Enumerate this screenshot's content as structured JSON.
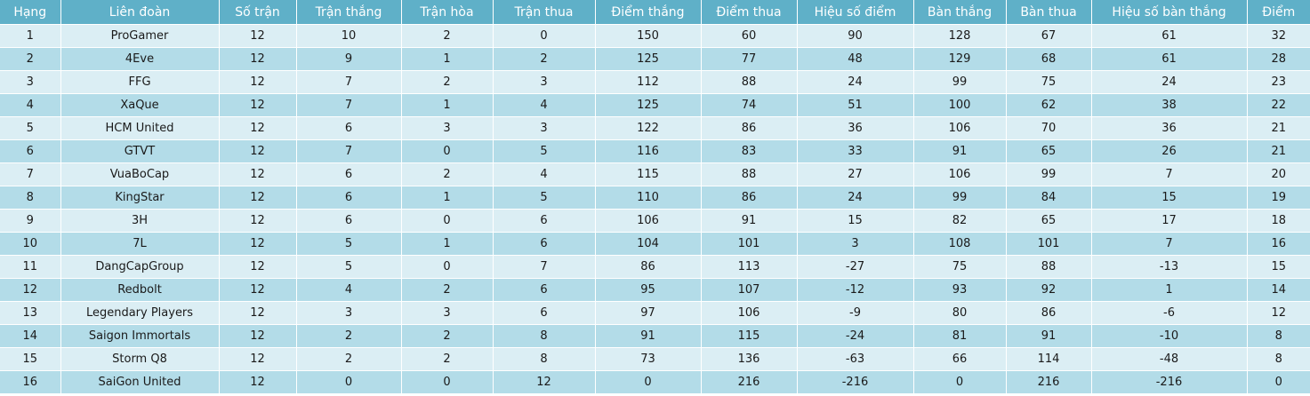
{
  "table": {
    "headers": [
      "Hạng",
      "Liên đoàn",
      "Số trận",
      "Trận thắng",
      "Trận hòa",
      "Trận thua",
      "Điểm thắng",
      "Điểm thua",
      "Hiệu số điểm",
      "Bàn thắng",
      "Bàn thua",
      "Hiệu số bàn thắng",
      "Điểm"
    ],
    "rows": [
      [
        "1",
        "ProGamer",
        "12",
        "10",
        "2",
        "0",
        "150",
        "60",
        "90",
        "128",
        "67",
        "61",
        "32"
      ],
      [
        "2",
        "4Eve",
        "12",
        "9",
        "1",
        "2",
        "125",
        "77",
        "48",
        "129",
        "68",
        "61",
        "28"
      ],
      [
        "3",
        "FFG",
        "12",
        "7",
        "2",
        "3",
        "112",
        "88",
        "24",
        "99",
        "75",
        "24",
        "23"
      ],
      [
        "4",
        "XaQue",
        "12",
        "7",
        "1",
        "4",
        "125",
        "74",
        "51",
        "100",
        "62",
        "38",
        "22"
      ],
      [
        "5",
        "HCM United",
        "12",
        "6",
        "3",
        "3",
        "122",
        "86",
        "36",
        "106",
        "70",
        "36",
        "21"
      ],
      [
        "6",
        "GTVT",
        "12",
        "7",
        "0",
        "5",
        "116",
        "83",
        "33",
        "91",
        "65",
        "26",
        "21"
      ],
      [
        "7",
        "VuaBoCap",
        "12",
        "6",
        "2",
        "4",
        "115",
        "88",
        "27",
        "106",
        "99",
        "7",
        "20"
      ],
      [
        "8",
        "KingStar",
        "12",
        "6",
        "1",
        "5",
        "110",
        "86",
        "24",
        "99",
        "84",
        "15",
        "19"
      ],
      [
        "9",
        "3H",
        "12",
        "6",
        "0",
        "6",
        "106",
        "91",
        "15",
        "82",
        "65",
        "17",
        "18"
      ],
      [
        "10",
        "7L",
        "12",
        "5",
        "1",
        "6",
        "104",
        "101",
        "3",
        "108",
        "101",
        "7",
        "16"
      ],
      [
        "11",
        "DangCapGroup",
        "12",
        "5",
        "0",
        "7",
        "86",
        "113",
        "-27",
        "75",
        "88",
        "-13",
        "15"
      ],
      [
        "12",
        "Redbolt",
        "12",
        "4",
        "2",
        "6",
        "95",
        "107",
        "-12",
        "93",
        "92",
        "1",
        "14"
      ],
      [
        "13",
        "Legendary Players",
        "12",
        "3",
        "3",
        "6",
        "97",
        "106",
        "-9",
        "80",
        "86",
        "-6",
        "12"
      ],
      [
        "14",
        "Saigon Immortals",
        "12",
        "2",
        "2",
        "8",
        "91",
        "115",
        "-24",
        "81",
        "91",
        "-10",
        "8"
      ],
      [
        "15",
        "Storm Q8",
        "12",
        "2",
        "2",
        "8",
        "73",
        "136",
        "-63",
        "66",
        "114",
        "-48",
        "8"
      ],
      [
        "16",
        "SaiGon United",
        "12",
        "0",
        "0",
        "12",
        "0",
        "216",
        "-216",
        "0",
        "216",
        "-216",
        "0"
      ]
    ]
  }
}
